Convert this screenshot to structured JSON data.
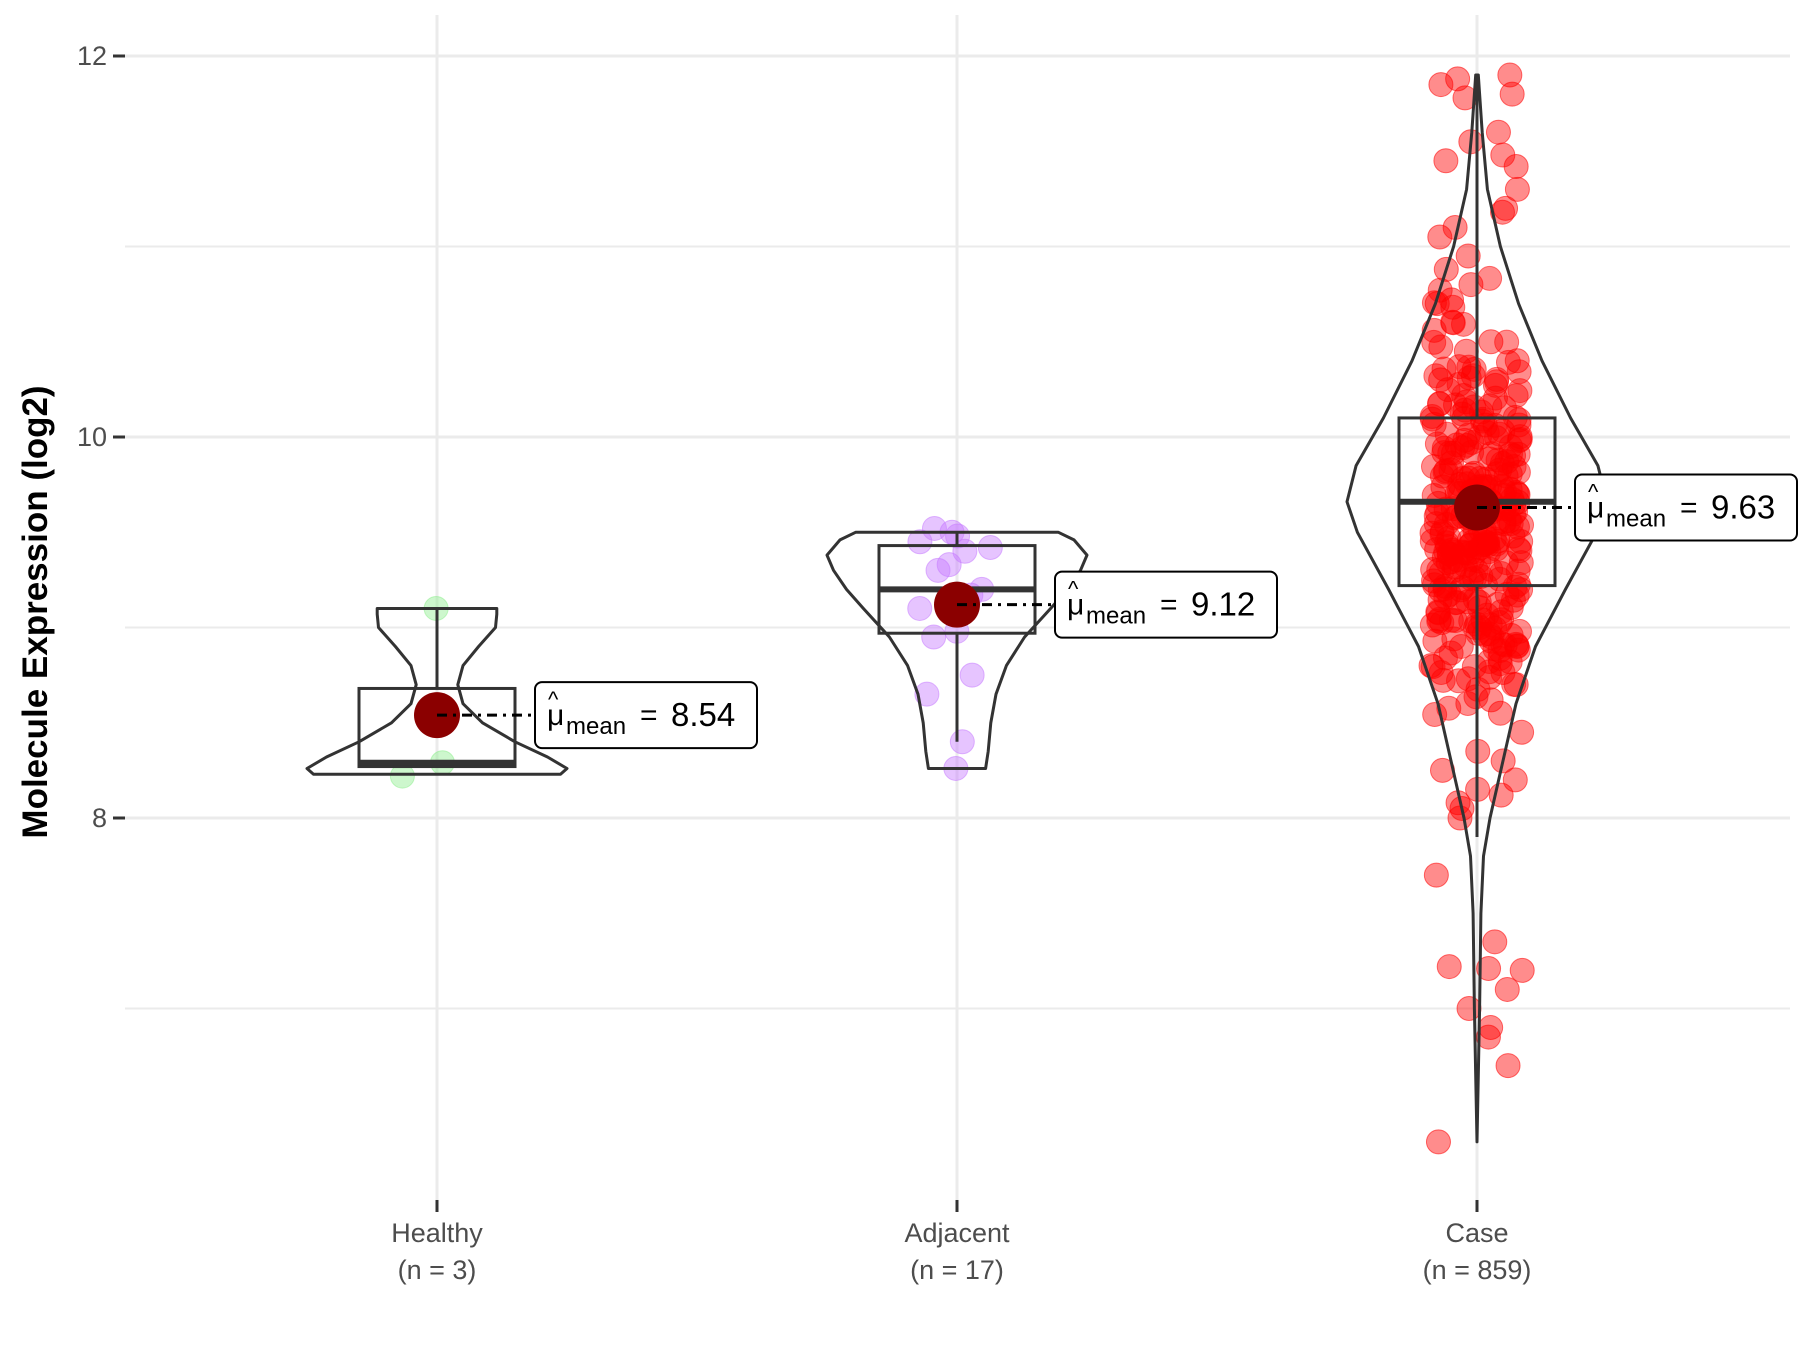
{
  "chart_data": {
    "type": "violin",
    "title": "",
    "xlabel": "",
    "ylabel": "Molecule Expression (log2)",
    "ylim": [
      6.0,
      12.2
    ],
    "y_ticks": [
      8,
      10,
      12
    ],
    "y_minor_ticks": [
      7,
      9,
      11
    ],
    "grid": true,
    "legend": "none",
    "groups": [
      {
        "name": "Healthy",
        "n_label": "(n = 3)",
        "color": "#90ee90",
        "mean": 8.54,
        "mean_label": "8.54",
        "box": {
          "q1": 8.27,
          "median": 8.29,
          "q3": 8.68,
          "whisker_low": 8.27,
          "whisker_high": 9.1
        },
        "violin": {
          "min": 8.23,
          "max": 9.1,
          "profile": [
            [
              8.23,
              0.95
            ],
            [
              8.26,
              1.0
            ],
            [
              8.32,
              0.85
            ],
            [
              8.4,
              0.6
            ],
            [
              8.5,
              0.35
            ],
            [
              8.6,
              0.2
            ],
            [
              8.7,
              0.16
            ],
            [
              8.8,
              0.2
            ],
            [
              8.9,
              0.32
            ],
            [
              9.0,
              0.45
            ],
            [
              9.07,
              0.46
            ],
            [
              9.1,
              0.46
            ]
          ]
        },
        "points": [
          9.1,
          8.29,
          8.22
        ]
      },
      {
        "name": "Adjacent",
        "n_label": "(n = 17)",
        "color": "#c77cff",
        "mean": 9.12,
        "mean_label": "9.12",
        "box": {
          "q1": 8.97,
          "median": 9.2,
          "q3": 9.43,
          "whisker_low": 8.4,
          "whisker_high": 9.5
        },
        "violin": {
          "min": 8.26,
          "max": 9.5,
          "profile": [
            [
              8.26,
              0.22
            ],
            [
              8.35,
              0.24
            ],
            [
              8.5,
              0.26
            ],
            [
              8.65,
              0.3
            ],
            [
              8.8,
              0.38
            ],
            [
              8.95,
              0.52
            ],
            [
              9.1,
              0.72
            ],
            [
              9.2,
              0.85
            ],
            [
              9.3,
              0.95
            ],
            [
              9.38,
              1.0
            ],
            [
              9.46,
              0.9
            ],
            [
              9.5,
              0.78
            ]
          ]
        },
        "points": [
          9.52,
          9.5,
          9.48,
          9.45,
          9.42,
          9.4,
          9.33,
          9.3,
          9.2,
          9.17,
          9.1,
          8.98,
          8.95,
          8.75,
          8.65,
          8.4,
          8.26
        ]
      },
      {
        "name": "Case",
        "n_label": "(n = 859)",
        "color": "#ff0000",
        "mean": 9.63,
        "mean_label": "9.63",
        "box": {
          "q1": 9.22,
          "median": 9.66,
          "q3": 10.1,
          "whisker_low": 7.9,
          "whisker_high": 11.9
        },
        "violin": {
          "min": 6.3,
          "max": 11.9,
          "profile": [
            [
              6.3,
              0.0
            ],
            [
              7.0,
              0.02
            ],
            [
              7.5,
              0.03
            ],
            [
              7.8,
              0.05
            ],
            [
              8.0,
              0.1
            ],
            [
              8.3,
              0.2
            ],
            [
              8.6,
              0.3
            ],
            [
              8.9,
              0.45
            ],
            [
              9.2,
              0.68
            ],
            [
              9.5,
              0.92
            ],
            [
              9.66,
              1.0
            ],
            [
              9.85,
              0.93
            ],
            [
              10.1,
              0.72
            ],
            [
              10.4,
              0.5
            ],
            [
              10.7,
              0.32
            ],
            [
              11.0,
              0.18
            ],
            [
              11.3,
              0.08
            ],
            [
              11.6,
              0.04
            ],
            [
              11.9,
              0.01
            ]
          ]
        },
        "points_total": 859,
        "points": [
          11.9,
          11.88,
          11.85,
          11.8,
          11.78,
          11.6,
          11.55,
          11.48,
          11.45,
          11.42,
          11.3,
          11.2,
          11.18,
          11.1,
          11.05,
          10.95,
          10.88,
          10.8,
          10.72,
          10.7,
          10.6,
          10.5,
          10.45,
          10.4,
          10.3,
          9.0,
          8.9,
          8.8,
          8.7,
          8.62,
          8.55,
          8.45,
          8.35,
          8.3,
          8.25,
          8.2,
          8.15,
          8.12,
          8.08,
          8.05,
          8.0,
          7.7,
          7.35,
          7.22,
          7.21,
          7.2,
          7.1,
          7.0,
          6.9,
          6.85,
          6.7,
          6.3
        ]
      }
    ]
  }
}
